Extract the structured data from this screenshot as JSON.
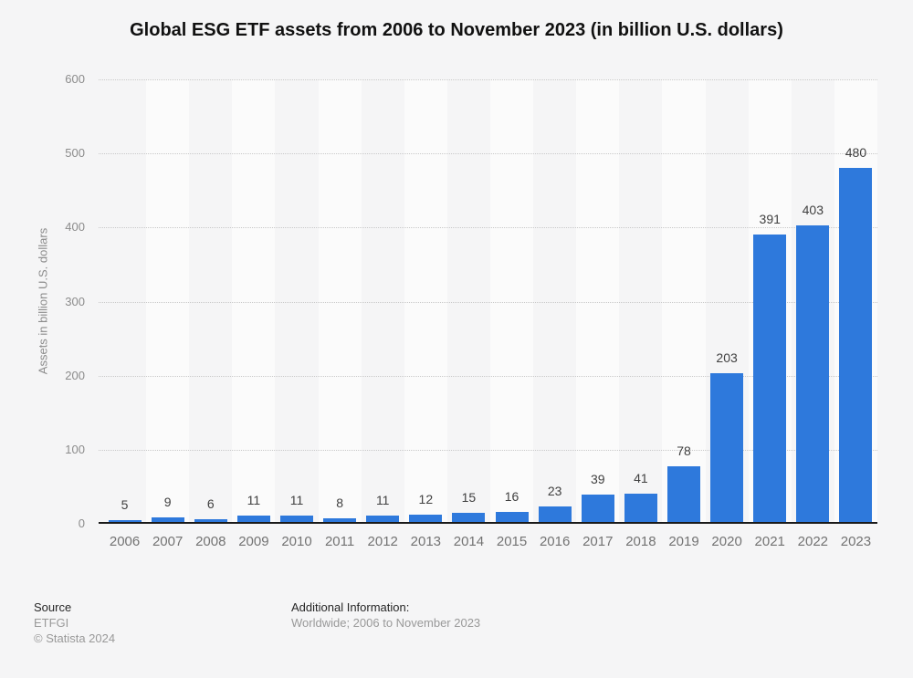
{
  "title": "Global ESG ETF assets from 2006 to November 2023 (in billion U.S. dollars)",
  "chart_data": {
    "type": "bar",
    "title": "Global ESG ETF assets from 2006 to November 2023 (in billion U.S. dollars)",
    "categories": [
      "2006",
      "2007",
      "2008",
      "2009",
      "2010",
      "2011",
      "2012",
      "2013",
      "2014",
      "2015",
      "2016",
      "2017",
      "2018",
      "2019",
      "2020",
      "2021",
      "2022",
      "2023"
    ],
    "values": [
      5,
      9,
      6,
      11,
      11,
      8,
      11,
      12,
      15,
      16,
      23,
      39,
      41,
      78,
      203,
      391,
      403,
      480
    ],
    "xlabel": "",
    "ylabel": "Assets in billion U.S. dollars",
    "ylim": [
      0,
      600
    ],
    "yticks": [
      0,
      100,
      200,
      300,
      400,
      500,
      600
    ],
    "grid": "horizontal-dotted",
    "legend": "none",
    "value_labels": true,
    "bar_color": "#2e79dc"
  },
  "footer": {
    "source_label": "Source",
    "source_value": "ETFGI",
    "copyright": "© Statista 2024",
    "additional_info_label": "Additional Information:",
    "additional_info_value": "Worldwide; 2006 to November 2023"
  },
  "colors": {
    "background": "#f5f5f6",
    "band_light": "#fbfbfb",
    "bar": "#2e79dc",
    "gridline": "#c9c9c9",
    "axis_line": "#1a1a1a",
    "title_text": "#111111",
    "tick_text": "#8c8c8c",
    "x_label_text": "#737373",
    "value_label_text": "#404040",
    "footer_dark": "#262626",
    "footer_gray": "#999999"
  }
}
